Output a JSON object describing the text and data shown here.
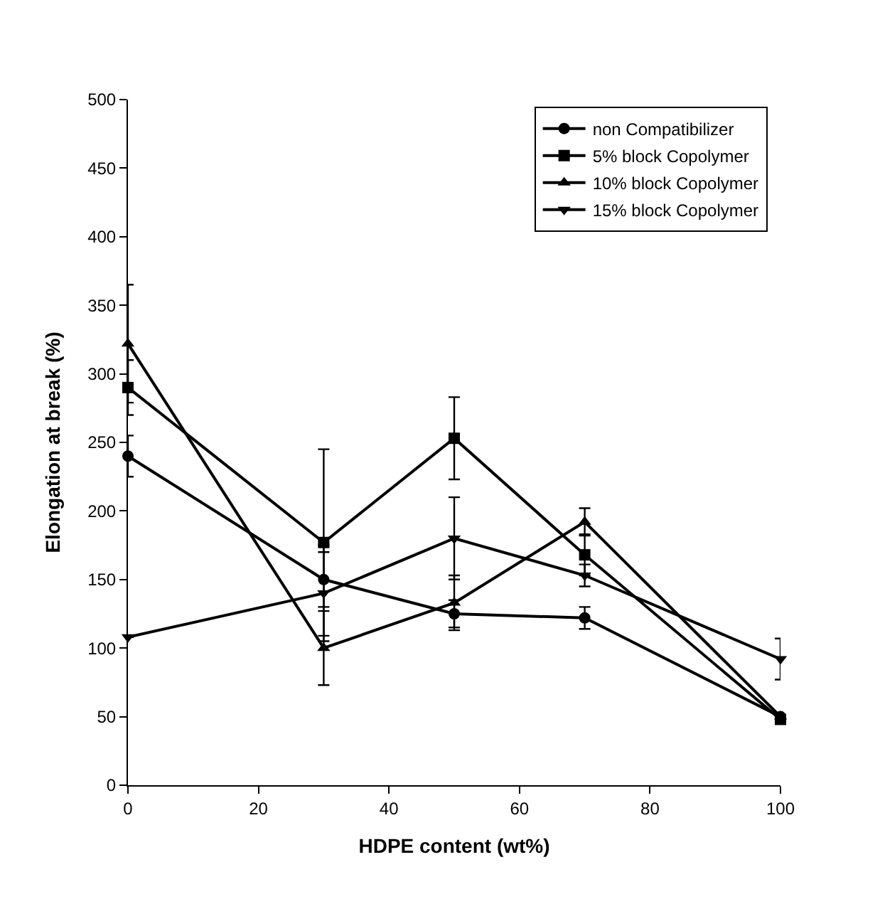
{
  "chart_data": {
    "type": "line",
    "xlabel": "HDPE content (wt%)",
    "ylabel": "Elongation at break (%)",
    "x": [
      0,
      30,
      50,
      70,
      100
    ],
    "xlim": [
      0,
      100
    ],
    "xticks": [
      0,
      20,
      40,
      60,
      80,
      100
    ],
    "ylim": [
      0,
      500
    ],
    "yticks": [
      0,
      50,
      100,
      150,
      200,
      250,
      300,
      350,
      400,
      450,
      500
    ],
    "legend": "top right",
    "series": [
      {
        "name": "non Compatibilizer",
        "color": "#000000",
        "marker": "circle",
        "values": [
          240,
          150,
          125,
          122,
          50
        ],
        "errors": [
          15,
          20,
          10,
          8,
          null
        ]
      },
      {
        "name": "5% block Copolymer",
        "color": "#000000",
        "marker": "square",
        "values": [
          290,
          177,
          253,
          168,
          48
        ],
        "errors": [
          20,
          68,
          30,
          15,
          null
        ]
      },
      {
        "name": "10% block Copolymer",
        "color": "#000000",
        "marker": "triangle",
        "values": [
          322,
          100,
          133,
          192,
          50
        ],
        "errors": [
          43,
          27,
          20,
          10,
          null
        ]
      },
      {
        "name": "15% block Copolymer",
        "color": "#000000",
        "marker": "triangle-down",
        "values": [
          108,
          140,
          180,
          153,
          92
        ],
        "errors": [
          null,
          35,
          30,
          8,
          15
        ]
      }
    ]
  }
}
